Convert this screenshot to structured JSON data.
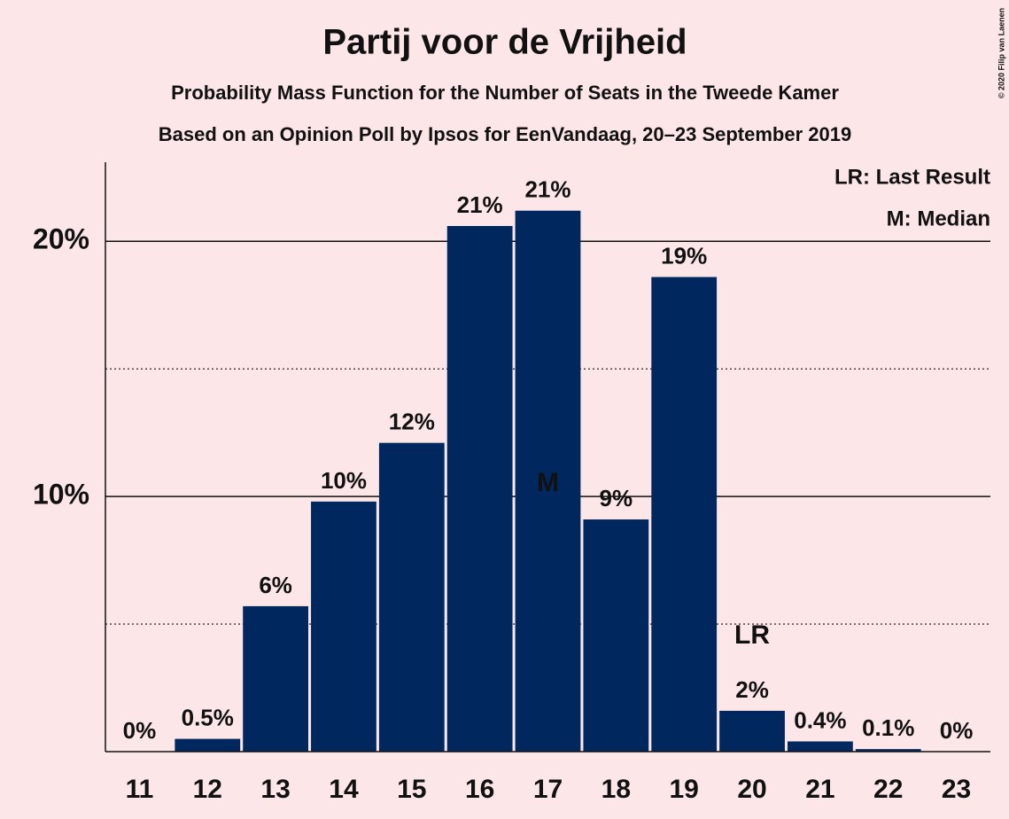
{
  "chart_data": {
    "type": "bar",
    "title": "Partij voor de Vrijheid",
    "subtitle": "Probability Mass Function for the Number of Seats in the Tweede Kamer",
    "subtitle2": "Based on an Opinion Poll by Ipsos for EenVandaag, 20–23 September 2019",
    "copyright": "© 2020 Filip van Laenen",
    "legend": [
      "LR: Last Result",
      "M: Median"
    ],
    "categories": [
      "11",
      "12",
      "13",
      "14",
      "15",
      "16",
      "17",
      "18",
      "19",
      "20",
      "21",
      "22",
      "23"
    ],
    "values": [
      0,
      0.5,
      5.7,
      9.8,
      12.1,
      20.6,
      21.2,
      9.1,
      18.6,
      1.6,
      0.4,
      0.1,
      0
    ],
    "value_labels": [
      "0%",
      "0.5%",
      "6%",
      "10%",
      "12%",
      "21%",
      "21%",
      "9%",
      "19%",
      "2%",
      "0.4%",
      "0.1%",
      "0%"
    ],
    "annotations": [
      {
        "category": "17",
        "text": "M"
      },
      {
        "category": "20",
        "text": "LR"
      }
    ],
    "color": "#00285e",
    "ylim": [
      0,
      23.1
    ],
    "yticks": [
      {
        "value": 10,
        "label": "10%"
      },
      {
        "value": 20,
        "label": "20%"
      }
    ],
    "minor_gridlines": [
      5,
      15
    ],
    "grid": true
  }
}
